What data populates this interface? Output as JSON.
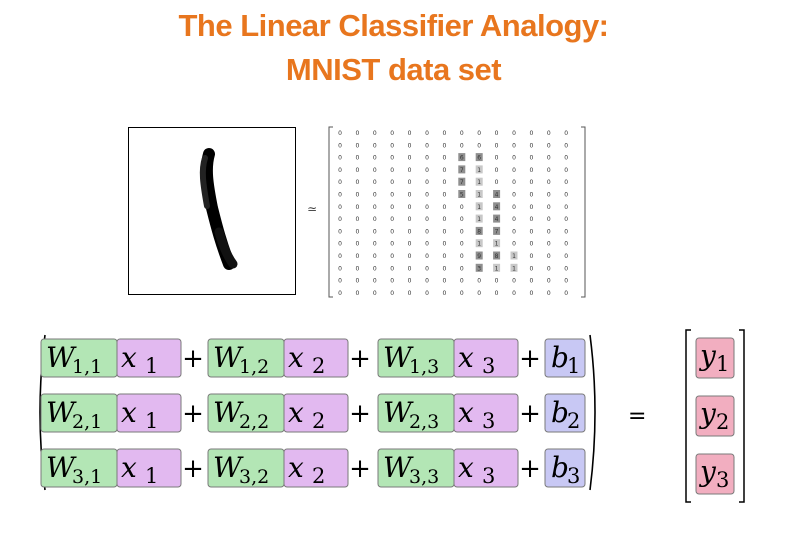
{
  "title": {
    "line1": "The Linear Classifier Analogy:",
    "line2": "MNIST data set"
  },
  "approx_symbol": "≃",
  "pixel_matrix": [
    [
      "0",
      "0",
      "0",
      "0",
      "0",
      "0",
      "0",
      "0",
      "0",
      "0",
      "0",
      "0",
      "0",
      "0"
    ],
    [
      "0",
      "0",
      "0",
      "0",
      "0",
      "0",
      "0",
      "0",
      "0",
      "0",
      "0",
      "0",
      "0",
      "0"
    ],
    [
      "0",
      "0",
      "0",
      "0",
      "0",
      "0",
      "0",
      "6",
      "6",
      "0",
      "0",
      "0",
      "0",
      "0"
    ],
    [
      "0",
      "0",
      "0",
      "0",
      "0",
      "0",
      "0",
      "7",
      "1",
      "0",
      "0",
      "0",
      "0",
      "0"
    ],
    [
      "0",
      "0",
      "0",
      "0",
      "0",
      "0",
      "0",
      "7",
      "1",
      "0",
      "0",
      "0",
      "0",
      "0"
    ],
    [
      "0",
      "0",
      "0",
      "0",
      "0",
      "0",
      "0",
      "5",
      "1",
      "4",
      "0",
      "0",
      "0",
      "0"
    ],
    [
      "0",
      "0",
      "0",
      "0",
      "0",
      "0",
      "0",
      "0",
      "1",
      "4",
      "0",
      "0",
      "0",
      "0"
    ],
    [
      "0",
      "0",
      "0",
      "0",
      "0",
      "0",
      "0",
      "0",
      "1",
      "4",
      "0",
      "0",
      "0",
      "0"
    ],
    [
      "0",
      "0",
      "0",
      "0",
      "0",
      "0",
      "0",
      "0",
      "8",
      "7",
      "0",
      "0",
      "0",
      "0"
    ],
    [
      "0",
      "0",
      "0",
      "0",
      "0",
      "0",
      "0",
      "0",
      "1",
      "1",
      "0",
      "0",
      "0",
      "0"
    ],
    [
      "0",
      "0",
      "0",
      "0",
      "0",
      "0",
      "0",
      "0",
      "9",
      "8",
      "1",
      "0",
      "0",
      "0"
    ],
    [
      "0",
      "0",
      "0",
      "0",
      "0",
      "0",
      "0",
      "0",
      "3",
      "1",
      "1",
      "0",
      "0",
      "0"
    ],
    [
      "0",
      "0",
      "0",
      "0",
      "0",
      "0",
      "0",
      "0",
      "0",
      "0",
      "0",
      "0",
      "0",
      "0"
    ],
    [
      "0",
      "0",
      "0",
      "0",
      "0",
      "0",
      "0",
      "0",
      "0",
      "0",
      "0",
      "0",
      "0",
      "0"
    ]
  ],
  "equation": {
    "rows": [
      {
        "terms": [
          {
            "w": "W",
            "wsub": "1,1",
            "x": "x",
            "xsub": "1"
          },
          {
            "w": "W",
            "wsub": "1,2",
            "x": "x",
            "xsub": "2"
          },
          {
            "w": "W",
            "wsub": "1,3",
            "x": "x",
            "xsub": "3"
          }
        ],
        "b": "b",
        "bsub": "1"
      },
      {
        "terms": [
          {
            "w": "W",
            "wsub": "2,1",
            "x": "x",
            "xsub": "1"
          },
          {
            "w": "W",
            "wsub": "2,2",
            "x": "x",
            "xsub": "2"
          },
          {
            "w": "W",
            "wsub": "2,3",
            "x": "x",
            "xsub": "3"
          }
        ],
        "b": "b",
        "bsub": "2"
      },
      {
        "terms": [
          {
            "w": "W",
            "wsub": "3,1",
            "x": "x",
            "xsub": "1"
          },
          {
            "w": "W",
            "wsub": "3,2",
            "x": "x",
            "xsub": "2"
          },
          {
            "w": "W",
            "wsub": "3,3",
            "x": "x",
            "xsub": "3"
          }
        ],
        "b": "b",
        "bsub": "3"
      }
    ],
    "plus": "+",
    "equals": "=",
    "outputs": [
      {
        "y": "y",
        "sub": "1"
      },
      {
        "y": "y",
        "sub": "2"
      },
      {
        "y": "y",
        "sub": "3"
      }
    ]
  },
  "colors": {
    "title": "#e8761e",
    "weight_fill": "#b3e6b5",
    "input_fill": "#e2b9f0",
    "bias_fill": "#c8c8f4",
    "output_fill": "#f2aec0",
    "box_border": "#7a7a7a"
  }
}
